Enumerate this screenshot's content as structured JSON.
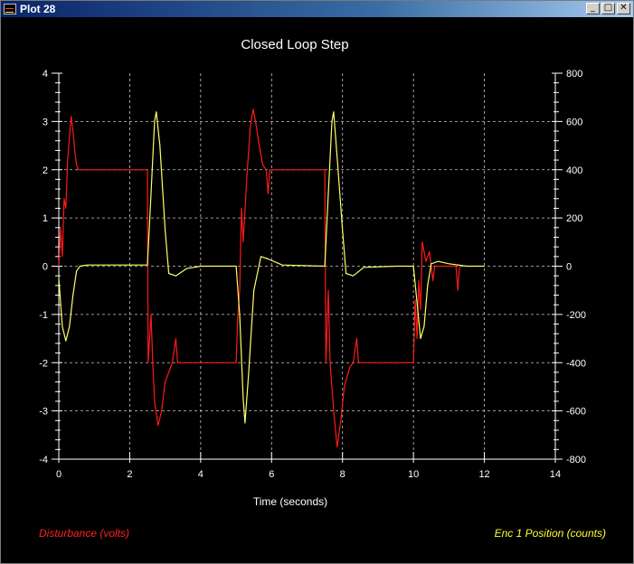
{
  "window": {
    "title": "Plot 28",
    "minimize_glyph": "_",
    "maximize_glyph": "□",
    "close_glyph": "✕"
  },
  "colors": {
    "background": "#000000",
    "grid": "#c8c8c8",
    "axis": "#ffffff",
    "disturbance": "#ff1a1a",
    "encoder": "#ffff66"
  },
  "chart_data": {
    "type": "line",
    "title": "Closed Loop Step",
    "xlabel": "Time (seconds)",
    "xlim": [
      0,
      14
    ],
    "x_ticks": [
      0,
      2,
      4,
      6,
      8,
      10,
      12,
      14
    ],
    "grid": true,
    "y_left": {
      "label": "Disturbance (volts)",
      "lim": [
        -4,
        4
      ],
      "ticks": [
        -4,
        -3,
        -2,
        -1,
        0,
        1,
        2,
        3,
        4
      ]
    },
    "y_right": {
      "label": "Enc 1 Position (counts)",
      "lim": [
        -800,
        800
      ],
      "ticks": [
        -800,
        -600,
        -400,
        -200,
        0,
        200,
        400,
        600,
        800
      ]
    },
    "series": [
      {
        "name": "Disturbance (volts)",
        "axis": "left",
        "color": "#ff1a1a",
        "points": [
          [
            0.0,
            0.0
          ],
          [
            0.05,
            0.8
          ],
          [
            0.1,
            0.2
          ],
          [
            0.15,
            1.4
          ],
          [
            0.2,
            1.2
          ],
          [
            0.25,
            2.2
          ],
          [
            0.3,
            2.7
          ],
          [
            0.35,
            3.1
          ],
          [
            0.4,
            2.8
          ],
          [
            0.45,
            2.4
          ],
          [
            0.5,
            2.1
          ],
          [
            0.55,
            2.0
          ],
          [
            0.6,
            2.0
          ],
          [
            2.5,
            2.0
          ],
          [
            2.52,
            -2.0
          ],
          [
            2.6,
            -1.0
          ],
          [
            2.65,
            -2.0
          ],
          [
            2.7,
            -2.8
          ],
          [
            2.8,
            -3.3
          ],
          [
            2.9,
            -3.0
          ],
          [
            3.0,
            -2.4
          ],
          [
            3.1,
            -2.2
          ],
          [
            3.2,
            -2.0
          ],
          [
            3.3,
            -1.5
          ],
          [
            3.35,
            -2.0
          ],
          [
            5.0,
            -2.0
          ],
          [
            5.05,
            -1.0
          ],
          [
            5.1,
            -0.5
          ],
          [
            5.15,
            1.2
          ],
          [
            5.2,
            0.5
          ],
          [
            5.3,
            1.8
          ],
          [
            5.4,
            2.9
          ],
          [
            5.48,
            3.25
          ],
          [
            5.55,
            3.0
          ],
          [
            5.65,
            2.5
          ],
          [
            5.75,
            2.1
          ],
          [
            5.85,
            2.0
          ],
          [
            5.9,
            1.5
          ],
          [
            5.95,
            2.0
          ],
          [
            7.5,
            2.0
          ],
          [
            7.53,
            -2.0
          ],
          [
            7.6,
            -0.5
          ],
          [
            7.65,
            -2.0
          ],
          [
            7.75,
            -3.0
          ],
          [
            7.85,
            -3.75
          ],
          [
            7.95,
            -3.2
          ],
          [
            8.05,
            -2.5
          ],
          [
            8.2,
            -2.1
          ],
          [
            8.3,
            -2.0
          ],
          [
            8.4,
            -1.5
          ],
          [
            8.45,
            -2.0
          ],
          [
            10.0,
            -2.0
          ],
          [
            10.05,
            -0.7
          ],
          [
            10.1,
            -1.5
          ],
          [
            10.15,
            -0.3
          ],
          [
            10.2,
            -0.9
          ],
          [
            10.25,
            0.5
          ],
          [
            10.35,
            0.1
          ],
          [
            10.45,
            0.3
          ],
          [
            10.55,
            -0.3
          ],
          [
            10.6,
            0.0
          ],
          [
            11.2,
            0.0
          ],
          [
            11.25,
            -0.5
          ],
          [
            11.3,
            0.0
          ]
        ]
      },
      {
        "name": "Enc 1 Position (counts)",
        "axis": "right",
        "color": "#ffff66",
        "points": [
          [
            0.0,
            -50
          ],
          [
            0.1,
            -250
          ],
          [
            0.2,
            -310
          ],
          [
            0.3,
            -250
          ],
          [
            0.4,
            -120
          ],
          [
            0.5,
            -20
          ],
          [
            0.6,
            0
          ],
          [
            0.8,
            5
          ],
          [
            2.5,
            5
          ],
          [
            2.6,
            300
          ],
          [
            2.7,
            600
          ],
          [
            2.75,
            640
          ],
          [
            2.85,
            500
          ],
          [
            3.0,
            150
          ],
          [
            3.1,
            -30
          ],
          [
            3.3,
            -40
          ],
          [
            3.6,
            -10
          ],
          [
            4.0,
            0
          ],
          [
            5.0,
            0
          ],
          [
            5.1,
            -200
          ],
          [
            5.2,
            -550
          ],
          [
            5.25,
            -650
          ],
          [
            5.35,
            -450
          ],
          [
            5.5,
            -100
          ],
          [
            5.7,
            40
          ],
          [
            5.9,
            30
          ],
          [
            6.3,
            5
          ],
          [
            7.5,
            0
          ],
          [
            7.6,
            300
          ],
          [
            7.7,
            600
          ],
          [
            7.75,
            640
          ],
          [
            7.85,
            450
          ],
          [
            8.0,
            150
          ],
          [
            8.1,
            -30
          ],
          [
            8.3,
            -40
          ],
          [
            8.6,
            -5
          ],
          [
            9.5,
            0
          ],
          [
            10.0,
            0
          ],
          [
            10.1,
            -150
          ],
          [
            10.2,
            -300
          ],
          [
            10.3,
            -250
          ],
          [
            10.4,
            -80
          ],
          [
            10.5,
            10
          ],
          [
            10.7,
            20
          ],
          [
            11.0,
            10
          ],
          [
            11.5,
            0
          ],
          [
            12.0,
            0
          ]
        ]
      }
    ]
  }
}
